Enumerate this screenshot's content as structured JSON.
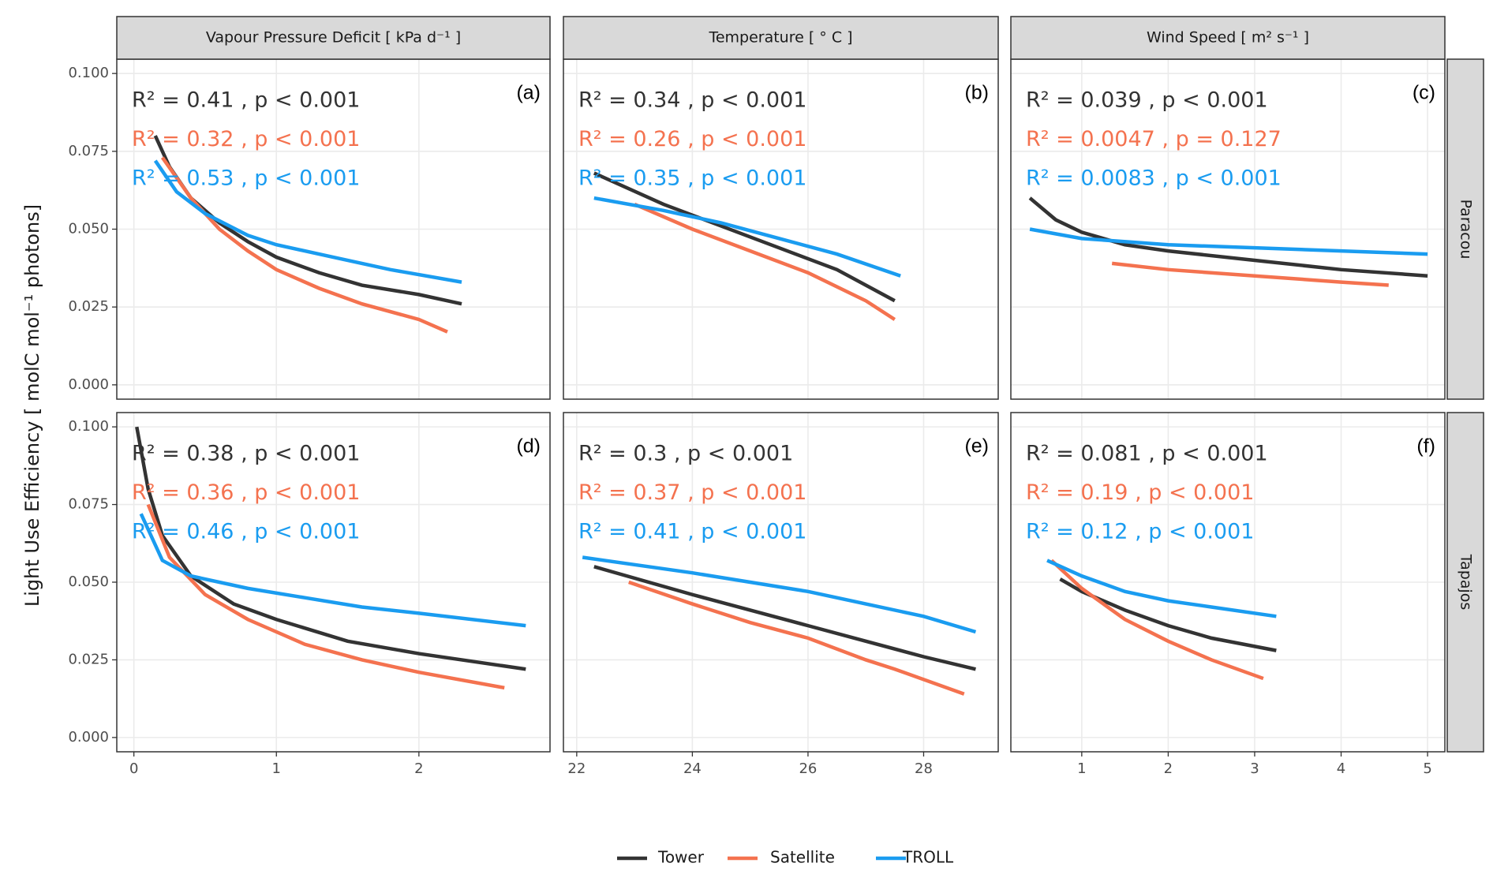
{
  "y_label": "Light Use Efficiency [ molC mol⁻¹ photons]",
  "chart_data": [
    {
      "type": "line",
      "title": "Vapour Pressure Deficit [ kPa d⁻¹ ]",
      "label": "(a)",
      "annotations": [
        "R² = 0.41 , p < 0.001",
        "R² = 0.32 , p < 0.001",
        "R² = 0.53 , p < 0.001"
      ],
      "xlim": [
        -0.12,
        2.92
      ],
      "xticks": [
        0,
        1,
        2
      ],
      "ylim": [
        -0.0046,
        0.1046
      ],
      "yticks": [
        {
          "value": 0,
          "label": "0.000"
        },
        {
          "value": 0.025,
          "label": "0.025"
        },
        {
          "value": 0.05,
          "label": "0.050"
        },
        {
          "value": 0.075,
          "label": "0.075"
        },
        {
          "value": 0.1,
          "label": "0.100"
        }
      ],
      "grid": true,
      "series": [
        {
          "name": "Tower",
          "color": "#333333",
          "x": [
            0.15,
            0.25,
            0.4,
            0.6,
            0.8,
            1.0,
            1.3,
            1.6,
            2.0,
            2.3
          ],
          "values": [
            0.08,
            0.07,
            0.06,
            0.052,
            0.046,
            0.041,
            0.036,
            0.032,
            0.029,
            0.026
          ]
        },
        {
          "name": "Satellite",
          "color": "#f4724f",
          "x": [
            0.2,
            0.4,
            0.6,
            0.8,
            1.0,
            1.3,
            1.6,
            2.0,
            2.2
          ],
          "values": [
            0.073,
            0.06,
            0.05,
            0.043,
            0.037,
            0.031,
            0.026,
            0.021,
            0.017
          ]
        },
        {
          "name": "TROLL",
          "color": "#1a9cf0",
          "x": [
            0.15,
            0.3,
            0.5,
            0.8,
            1.0,
            1.4,
            1.8,
            2.3
          ],
          "values": [
            0.072,
            0.062,
            0.055,
            0.048,
            0.045,
            0.041,
            0.037,
            0.033
          ]
        }
      ]
    },
    {
      "type": "line",
      "title": "Temperature [ ° C ]",
      "label": "(b)",
      "annotations": [
        "R² = 0.34 , p < 0.001",
        "R² = 0.26 , p < 0.001",
        "R² = 0.35 , p < 0.001"
      ],
      "xlim": [
        21.77,
        29.29
      ],
      "xticks": [
        22,
        24,
        26,
        28
      ],
      "ylim": [
        -0.0046,
        0.1046
      ],
      "yticks": [
        0,
        0.025,
        0.05,
        0.075,
        0.1
      ],
      "grid": true,
      "series": [
        {
          "color": "#333333",
          "x": [
            22.3,
            23.5,
            24.5,
            25.5,
            26.5,
            27.5
          ],
          "values": [
            0.068,
            0.058,
            0.051,
            0.044,
            0.037,
            0.027
          ]
        },
        {
          "color": "#f4724f",
          "x": [
            23,
            24,
            25,
            26,
            27,
            27.5
          ],
          "values": [
            0.058,
            0.05,
            0.043,
            0.036,
            0.027,
            0.021
          ]
        },
        {
          "color": "#1a9cf0",
          "x": [
            22.3,
            23.5,
            24.5,
            25.5,
            26.5,
            27.6
          ],
          "values": [
            0.06,
            0.056,
            0.052,
            0.047,
            0.042,
            0.035
          ]
        }
      ]
    },
    {
      "type": "line",
      "title": "Wind Speed [ m² s⁻¹ ]",
      "row_label": "Paracou",
      "label": "(c)",
      "annotations": [
        "R² = 0.039 , p < 0.001",
        "R² = 0.0047 , p = 0.127",
        "R² = 0.0083 , p < 0.001"
      ],
      "xlim": [
        0.18,
        5.2
      ],
      "xticks": [
        1,
        2,
        3,
        4,
        5
      ],
      "ylim": [
        -0.0046,
        0.1046
      ],
      "yticks": [
        0,
        0.025,
        0.05,
        0.075,
        0.1
      ],
      "grid": true,
      "series": [
        {
          "color": "#333333",
          "x": [
            0.4,
            0.7,
            1,
            1.5,
            2,
            3,
            4,
            5
          ],
          "values": [
            0.06,
            0.053,
            0.049,
            0.045,
            0.043,
            0.04,
            0.037,
            0.035
          ]
        },
        {
          "color": "#f4724f",
          "x": [
            1.35,
            2,
            3,
            4,
            4.55
          ],
          "values": [
            0.039,
            0.037,
            0.035,
            0.033,
            0.032
          ]
        },
        {
          "color": "#1a9cf0",
          "x": [
            0.4,
            1,
            2,
            3,
            4,
            5
          ],
          "values": [
            0.05,
            0.047,
            0.045,
            0.044,
            0.043,
            0.042
          ]
        }
      ]
    },
    {
      "type": "line",
      "label": "(d)",
      "annotations": [
        "R² = 0.38 , p < 0.001",
        "R² = 0.36 , p < 0.001",
        "R² = 0.46 , p < 0.001"
      ],
      "xlim": [
        -0.12,
        2.92
      ],
      "xticks": [
        0,
        1,
        2
      ],
      "ylim": [
        -0.0046,
        0.1046
      ],
      "yticks": [
        {
          "value": 0,
          "label": "0.000"
        },
        {
          "value": 0.025,
          "label": "0.025"
        },
        {
          "value": 0.05,
          "label": "0.050"
        },
        {
          "value": 0.075,
          "label": "0.075"
        },
        {
          "value": 0.1,
          "label": "0.100"
        }
      ],
      "grid": true,
      "series": [
        {
          "color": "#333333",
          "x": [
            0.02,
            0.1,
            0.2,
            0.4,
            0.7,
            1,
            1.5,
            2,
            2.75
          ],
          "values": [
            0.1,
            0.08,
            0.065,
            0.052,
            0.043,
            0.038,
            0.031,
            0.027,
            0.022
          ]
        },
        {
          "color": "#f4724f",
          "x": [
            0.1,
            0.25,
            0.5,
            0.8,
            1.2,
            1.6,
            2,
            2.6
          ],
          "values": [
            0.075,
            0.058,
            0.046,
            0.038,
            0.03,
            0.025,
            0.021,
            0.016
          ]
        },
        {
          "color": "#1a9cf0",
          "x": [
            0.05,
            0.2,
            0.4,
            0.8,
            1.2,
            1.6,
            2,
            2.75
          ],
          "values": [
            0.072,
            0.057,
            0.052,
            0.048,
            0.045,
            0.042,
            0.04,
            0.036
          ]
        }
      ]
    },
    {
      "type": "line",
      "label": "(e)",
      "annotations": [
        "R² = 0.3 , p < 0.001",
        "R² = 0.37 , p < 0.001",
        "R² = 0.41 , p < 0.001"
      ],
      "xlim": [
        21.77,
        29.29
      ],
      "xticks": [
        22,
        24,
        26,
        28
      ],
      "ylim": [
        -0.0046,
        0.1046
      ],
      "yticks": [
        0,
        0.025,
        0.05,
        0.075,
        0.1
      ],
      "grid": true,
      "series": [
        {
          "color": "#333333",
          "x": [
            22.3,
            24,
            25,
            26,
            27,
            28,
            28.9
          ],
          "values": [
            0.055,
            0.046,
            0.041,
            0.036,
            0.031,
            0.026,
            0.022
          ]
        },
        {
          "color": "#f4724f",
          "x": [
            22.9,
            24,
            25,
            26,
            27,
            27.5,
            28.7
          ],
          "values": [
            0.05,
            0.043,
            0.037,
            0.032,
            0.025,
            0.022,
            0.014
          ]
        },
        {
          "color": "#1a9cf0",
          "x": [
            22.1,
            24,
            25,
            26,
            27,
            28,
            28.9
          ],
          "values": [
            0.058,
            0.053,
            0.05,
            0.047,
            0.043,
            0.039,
            0.034
          ]
        }
      ]
    },
    {
      "type": "line",
      "row_label": "Tapajos",
      "label": "(f)",
      "annotations": [
        "R² = 0.081 , p < 0.001",
        "R² = 0.19 , p < 0.001",
        "R² = 0.12 , p < 0.001"
      ],
      "xlim": [
        0.18,
        5.2
      ],
      "xticks": [
        1,
        2,
        3,
        4,
        5
      ],
      "ylim": [
        -0.0046,
        0.1046
      ],
      "yticks": [
        0,
        0.025,
        0.05,
        0.075,
        0.1
      ],
      "grid": true,
      "series": [
        {
          "color": "#333333",
          "x": [
            0.75,
            1,
            1.5,
            2,
            2.5,
            3.25
          ],
          "values": [
            0.051,
            0.047,
            0.041,
            0.036,
            0.032,
            0.028
          ]
        },
        {
          "color": "#f4724f",
          "x": [
            0.65,
            1,
            1.5,
            2,
            2.5,
            3.1
          ],
          "values": [
            0.057,
            0.048,
            0.038,
            0.031,
            0.025,
            0.019
          ]
        },
        {
          "color": "#1a9cf0",
          "x": [
            0.6,
            1,
            1.5,
            2,
            2.5,
            3.25
          ],
          "values": [
            0.057,
            0.052,
            0.047,
            0.044,
            0.042,
            0.039
          ]
        }
      ]
    }
  ]
}
